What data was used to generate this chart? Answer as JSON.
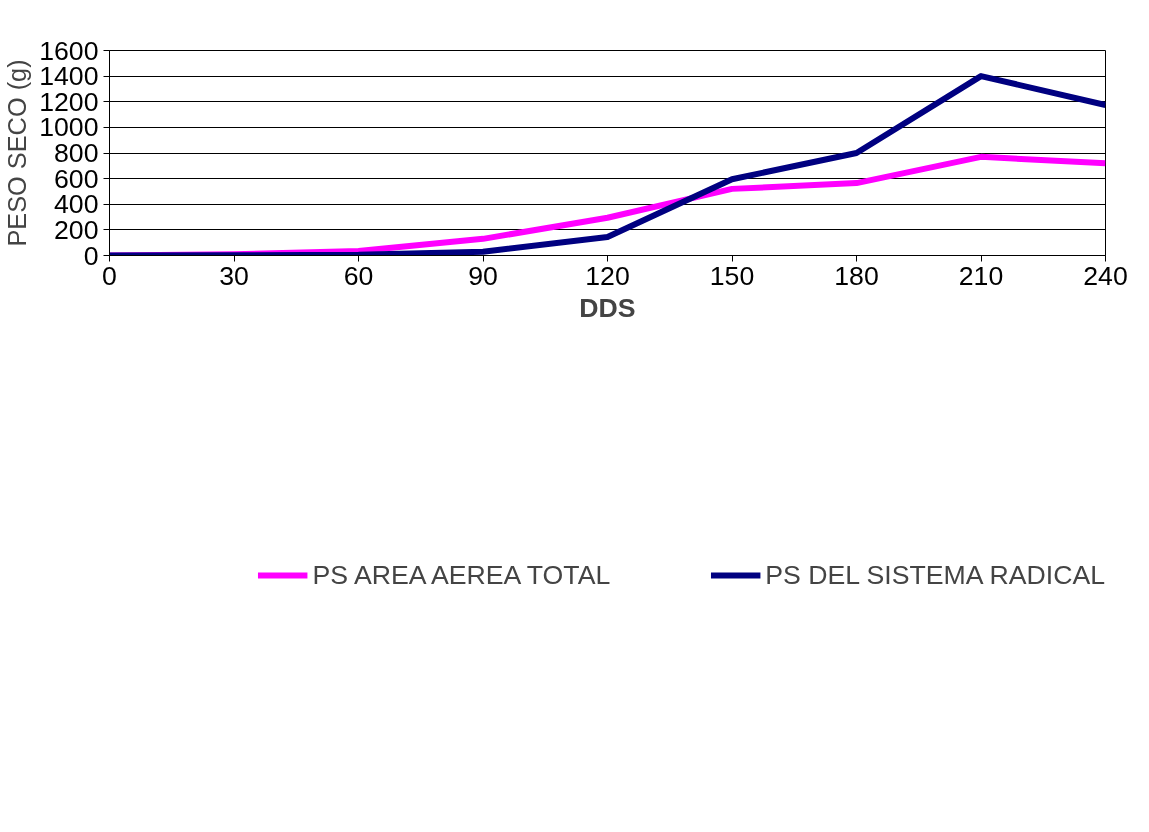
{
  "chart_data": {
    "type": "line",
    "xlabel": "DDS",
    "ylabel": "PESO SECO (g)",
    "x": [
      0,
      30,
      60,
      90,
      120,
      150,
      180,
      210,
      240
    ],
    "series": [
      {
        "name": "PS AREA AEREA TOTAL",
        "color": "#ff00ff",
        "values": [
          0,
          10,
          35,
          130,
          295,
          520,
          565,
          770,
          720
        ]
      },
      {
        "name": "PS DEL SISTEMA RADICAL",
        "color": "#000080",
        "values": [
          0,
          2,
          5,
          30,
          145,
          595,
          800,
          1400,
          1175
        ]
      }
    ],
    "xlim": [
      0,
      240
    ],
    "xticks": [
      0,
      30,
      60,
      90,
      120,
      150,
      180,
      210,
      240
    ],
    "ylim": [
      0,
      1600
    ],
    "yticks": [
      0,
      200,
      400,
      600,
      800,
      1000,
      1200,
      1400,
      1600
    ],
    "grid": "y",
    "legend": "bottom",
    "marker": "none",
    "line_style": "solid"
  }
}
